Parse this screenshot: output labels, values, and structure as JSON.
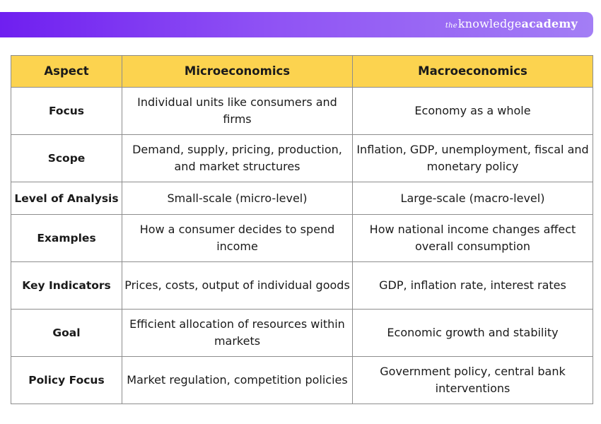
{
  "brand": {
    "prefix": "the",
    "name": "knowledge",
    "suffix": "academy"
  },
  "colors": {
    "banner_start": "#6f1ff0",
    "banner_end": "#a37ef5",
    "header_bg": "#fcd34f",
    "border": "#8d8d8d"
  },
  "table": {
    "headers": [
      "Aspect",
      "Microeconomics",
      "Macroeconomics"
    ],
    "rows": [
      {
        "aspect": "Focus",
        "micro": "Individual units like consumers and firms",
        "macro": "Economy as a whole"
      },
      {
        "aspect": "Scope",
        "micro": "Demand, supply, pricing, production, and market structures",
        "macro": "Inflation, GDP, unemployment, fiscal and monetary policy"
      },
      {
        "aspect": "Level of Analysis",
        "micro": "Small-scale (micro-level)",
        "macro": "Large-scale (macro-level)"
      },
      {
        "aspect": "Examples",
        "micro": "How a consumer decides to spend income",
        "macro": "How national income changes affect overall consumption"
      },
      {
        "aspect": "Key Indicators",
        "micro": "Prices, costs, output of individual goods",
        "macro": "GDP, inflation rate, interest rates"
      },
      {
        "aspect": "Goal",
        "micro": "Efficient allocation of resources within markets",
        "macro": "Economic growth and stability"
      },
      {
        "aspect": "Policy Focus",
        "micro": "Market regulation, competition policies",
        "macro": "Government policy, central bank interventions"
      }
    ]
  }
}
